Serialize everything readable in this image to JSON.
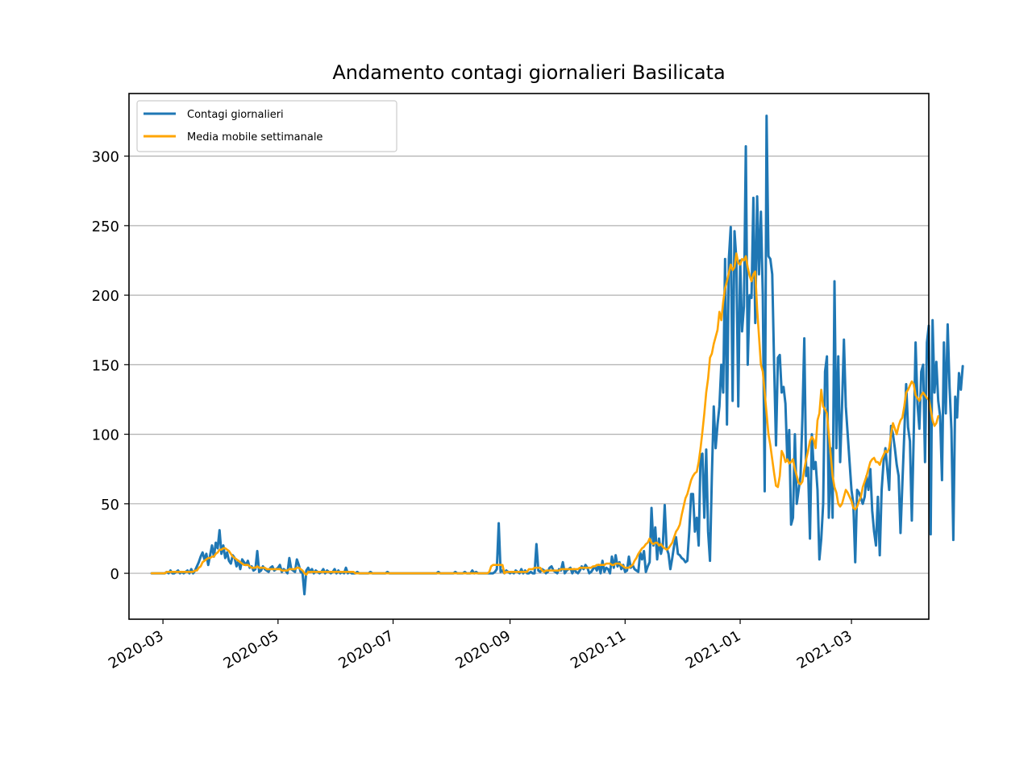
{
  "chart_data": {
    "type": "line",
    "title": "Andamento contagi giornalieri Basilicata",
    "xlabel": "",
    "ylabel": "",
    "x_start": "2020-02-24",
    "xlim": [
      "2020-02-12",
      "2021-04-11"
    ],
    "ylim": [
      -33,
      345
    ],
    "y_ticks": [
      0,
      50,
      100,
      150,
      200,
      250,
      300
    ],
    "x_ticks": [
      {
        "date": "2020-03-01",
        "label": "2020-03"
      },
      {
        "date": "2020-05-01",
        "label": "2020-05"
      },
      {
        "date": "2020-07-01",
        "label": "2020-07"
      },
      {
        "date": "2020-09-01",
        "label": "2020-09"
      },
      {
        "date": "2020-11-01",
        "label": "2020-11"
      },
      {
        "date": "2021-01-01",
        "label": "2021-01"
      },
      {
        "date": "2021-03-01",
        "label": "2021-03"
      }
    ],
    "grid": "horizontal",
    "legend_position": "top-left",
    "series": [
      {
        "name": "Contagi giornalieri",
        "color": "#1f77b4",
        "values": [
          0,
          0,
          0,
          0,
          0,
          0,
          0,
          0,
          1,
          0,
          2,
          0,
          0,
          1,
          2,
          0,
          1,
          0,
          1,
          2,
          0,
          3,
          0,
          2,
          5,
          8,
          12,
          15,
          10,
          14,
          6,
          13,
          20,
          12,
          22,
          18,
          31,
          14,
          20,
          11,
          15,
          9,
          7,
          13,
          11,
          5,
          9,
          3,
          10,
          8,
          6,
          9,
          4,
          5,
          2,
          3,
          16,
          1,
          2,
          5,
          3,
          2,
          1,
          4,
          5,
          2,
          3,
          4,
          6,
          1,
          3,
          2,
          0,
          11,
          3,
          2,
          1,
          10,
          6,
          1,
          0,
          -15,
          2,
          4,
          1,
          3,
          0,
          2,
          1,
          0,
          1,
          3,
          0,
          2,
          1,
          0,
          1,
          3,
          0,
          2,
          0,
          1,
          0,
          4,
          0,
          1,
          0,
          0,
          0,
          1,
          0,
          0,
          0,
          0,
          0,
          0,
          1,
          0,
          0,
          0,
          0,
          0,
          0,
          0,
          0,
          1,
          0,
          0,
          0,
          0,
          0,
          0,
          0,
          0,
          0,
          0,
          0,
          0,
          0,
          0,
          0,
          0,
          0,
          0,
          0,
          0,
          0,
          0,
          0,
          0,
          0,
          0,
          1,
          0,
          0,
          0,
          0,
          0,
          0,
          0,
          0,
          1,
          0,
          0,
          0,
          0,
          1,
          0,
          0,
          0,
          2,
          0,
          1,
          0,
          0,
          0,
          0,
          0,
          0,
          0,
          0,
          0,
          1,
          3,
          36,
          1,
          2,
          0,
          2,
          1,
          0,
          1,
          0,
          2,
          1,
          0,
          3,
          0,
          2,
          0,
          0,
          1,
          0,
          0,
          21,
          2,
          1,
          3,
          2,
          0,
          1,
          4,
          5,
          2,
          1,
          0,
          3,
          2,
          8,
          0,
          2,
          3,
          4,
          0,
          3,
          1,
          0,
          2,
          5,
          3,
          6,
          4,
          0,
          1,
          3,
          5,
          2,
          6,
          0,
          9,
          1,
          4,
          3,
          0,
          12,
          4,
          13,
          5,
          8,
          3,
          6,
          1,
          2,
          12,
          4,
          6,
          3,
          2,
          1,
          15,
          10,
          16,
          1,
          5,
          8,
          47,
          20,
          33,
          10,
          25,
          14,
          20,
          49,
          18,
          14,
          3,
          11,
          20,
          26,
          14,
          13,
          11,
          10,
          8,
          9,
          30,
          57,
          57,
          30,
          40,
          20,
          85,
          86,
          40,
          89,
          30,
          9,
          70,
          120,
          90,
          107,
          120,
          150,
          130,
          226,
          107,
          226,
          249,
          124,
          246,
          225,
          120,
          225,
          174,
          192,
          307,
          150,
          200,
          198,
          270,
          180,
          271,
          215,
          260,
          200,
          59,
          329,
          228,
          226,
          215,
          150,
          92,
          155,
          157,
          130,
          134,
          122,
          81,
          103,
          35,
          40,
          100,
          50,
          60,
          70,
          112,
          169,
          70,
          76,
          25,
          100,
          75,
          80,
          60,
          10,
          25,
          50,
          145,
          156,
          40,
          90,
          40,
          210,
          90,
          156,
          80,
          120,
          168,
          120,
          100,
          80,
          60,
          50,
          8,
          60,
          58,
          54,
          50,
          55,
          70,
          60,
          75,
          45,
          30,
          20,
          55,
          13,
          60,
          80,
          90,
          75,
          60,
          106,
          100,
          90,
          78,
          70,
          29,
          65,
          100,
          136,
          105,
          95,
          38,
          99,
          166,
          122,
          104,
          145,
          150,
          80,
          166,
          178,
          28,
          182,
          130,
          152,
          124,
          113,
          67,
          166,
          115,
          179,
          134,
          103,
          24,
          127,
          112,
          144,
          132,
          149
        ]
      },
      {
        "name": "Media mobile settimanale",
        "color": "#ffa500",
        "values": [
          0,
          0,
          0,
          0,
          0,
          0,
          0,
          0,
          1,
          1,
          1,
          1,
          1,
          1,
          1,
          1,
          1,
          1,
          1,
          1,
          1,
          1,
          1,
          2,
          2,
          4,
          5,
          8,
          9,
          10,
          11,
          11,
          12,
          12,
          14,
          15,
          17,
          17,
          18,
          18,
          17,
          16,
          14,
          12,
          11,
          10,
          9,
          8,
          7,
          6,
          6,
          6,
          5,
          4,
          4,
          4,
          5,
          4,
          4,
          4,
          4,
          3,
          3,
          3,
          3,
          3,
          3,
          3,
          3,
          2,
          2,
          2,
          2,
          3,
          3,
          3,
          3,
          4,
          4,
          3,
          2,
          0,
          -1,
          1,
          1,
          1,
          1,
          1,
          1,
          1,
          1,
          1,
          1,
          1,
          1,
          1,
          1,
          1,
          1,
          1,
          1,
          1,
          1,
          1,
          1,
          1,
          1,
          1,
          0,
          0,
          0,
          0,
          0,
          0,
          0,
          0,
          0,
          0,
          0,
          0,
          0,
          0,
          0,
          0,
          0,
          0,
          0,
          0,
          0,
          0,
          0,
          0,
          0,
          0,
          0,
          0,
          0,
          0,
          0,
          0,
          0,
          0,
          0,
          0,
          0,
          0,
          0,
          0,
          0,
          0,
          0,
          0,
          0,
          0,
          0,
          0,
          0,
          0,
          0,
          0,
          0,
          0,
          0,
          0,
          0,
          0,
          0,
          0,
          0,
          0,
          0,
          0,
          0,
          0,
          0,
          0,
          0,
          0,
          0,
          1,
          5,
          6,
          6,
          6,
          6,
          6,
          6,
          0,
          1,
          1,
          1,
          1,
          1,
          1,
          1,
          1,
          1,
          1,
          1,
          1,
          3,
          3,
          3,
          4,
          4,
          4,
          4,
          2,
          1,
          2,
          2,
          2,
          2,
          2,
          2,
          2,
          2,
          3,
          3,
          3,
          3,
          3,
          3,
          3,
          3,
          3,
          3,
          4,
          4,
          4,
          4,
          4,
          4,
          4,
          5,
          5,
          6,
          6,
          6,
          6,
          6,
          7,
          7,
          7,
          6,
          6,
          7,
          7,
          7,
          6,
          5,
          4,
          4,
          4,
          5,
          6,
          9,
          11,
          14,
          16,
          18,
          19,
          21,
          22,
          25,
          22,
          21,
          22,
          22,
          20,
          21,
          19,
          18,
          17,
          18,
          20,
          22,
          26,
          30,
          32,
          35,
          42,
          48,
          54,
          57,
          62,
          67,
          70,
          72,
          73,
          80,
          90,
          102,
          115,
          130,
          140,
          155,
          158,
          165,
          170,
          175,
          188,
          182,
          195,
          205,
          210,
          216,
          222,
          218,
          220,
          230,
          223,
          222,
          226,
          225,
          228,
          220,
          214,
          210,
          215,
          217,
          190,
          170,
          150,
          145,
          130,
          115,
          100,
          92,
          82,
          72,
          63,
          62,
          70,
          88,
          85,
          80,
          82,
          79,
          80,
          82,
          75,
          70,
          65,
          64,
          66,
          75,
          82,
          88,
          95,
          98,
          96,
          90,
          110,
          115,
          132,
          120,
          118,
          115,
          100,
          85,
          70,
          62,
          58,
          50,
          48,
          50,
          55,
          60,
          58,
          55,
          52,
          47,
          46,
          48,
          52,
          55,
          62,
          66,
          70,
          75,
          80,
          82,
          83,
          80,
          80,
          78,
          82,
          85,
          88,
          87,
          90,
          100,
          108,
          104,
          100,
          106,
          110,
          112,
          120,
          130,
          132,
          135,
          138,
          136,
          128,
          126,
          124,
          128,
          130,
          128,
          126,
          125,
          118,
          110,
          106,
          108,
          113
        ]
      }
    ]
  }
}
